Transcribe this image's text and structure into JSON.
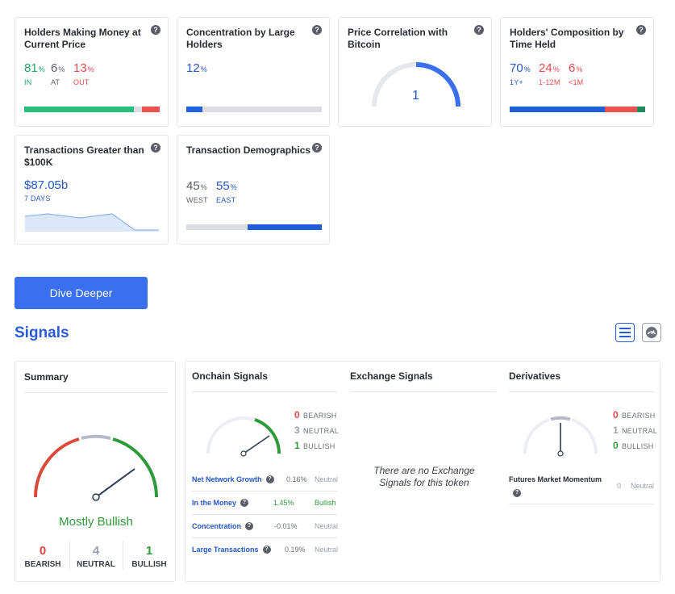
{
  "cards": {
    "holders_money": {
      "title": "Holders Making Money at Current Price",
      "in_value": "81",
      "in_label": "IN",
      "at_value": "6",
      "at_label": "AT",
      "out_value": "13",
      "out_label": "OUT",
      "pct": "%",
      "bar": {
        "in": 81,
        "at": 6,
        "out": 13
      },
      "colors": {
        "in": "#22c07a",
        "at": "#dcdde1",
        "out": "#ec5250"
      }
    },
    "concentration": {
      "title": "Concentration by Large Holders",
      "value": "12",
      "pct": "%",
      "bar": {
        "filled": 12
      },
      "colors": {
        "filled": "#2160e0",
        "rest": "#dcdde1"
      }
    },
    "correlation": {
      "title": "Price Correlation with Bitcoin",
      "value": "1"
    },
    "composition": {
      "title": "Holders' Composition by Time Held",
      "a_value": "70",
      "a_label": "1Y+",
      "b_value": "24",
      "b_label": "1-12M",
      "c_value": "6",
      "c_label": "<1M",
      "pct": "%",
      "bar": {
        "a": 70,
        "b": 24,
        "c": 6
      },
      "colors": {
        "a": "#1f5ed8",
        "b": "#ec5250",
        "c": "#1f8a5a"
      }
    },
    "transactions": {
      "title": "Transactions Greater than $100K",
      "value": "$87.05b",
      "period": "7 DAYS"
    },
    "demographics": {
      "title": "Transaction Demographics",
      "west_value": "45",
      "west_label": "WEST",
      "east_value": "55",
      "east_label": "EAST",
      "pct": "%",
      "bar": {
        "west": 45,
        "east": 55
      },
      "colors": {
        "west": "#dcdde1",
        "east": "#1f5ed8"
      }
    }
  },
  "help_icon": "?",
  "dive_button": "Dive Deeper",
  "signals": {
    "title": "Signals",
    "summary": {
      "title": "Summary",
      "verdict": "Mostly Bullish",
      "bearish_count": "0",
      "bearish_label": "BEARISH",
      "neutral_count": "4",
      "neutral_label": "NEUTRAL",
      "bullish_count": "1",
      "bullish_label": "BULLISH"
    },
    "onchain": {
      "title": "Onchain Signals",
      "bearish_count": "0",
      "bearish_label": "BEARISH",
      "neutral_count": "3",
      "neutral_label": "NEUTRAL",
      "bullish_count": "1",
      "bullish_label": "BULLISH",
      "rows": [
        {
          "name": "Net Network Growth",
          "value": "0.16%",
          "status": "Neutral"
        },
        {
          "name": "In the Money",
          "value": "1.45%",
          "status": "Bullish"
        },
        {
          "name": "Concentration",
          "value": "-0.01%",
          "status": "Neutral"
        },
        {
          "name": "Large Transactions",
          "value": "0.19%",
          "status": "Neutral"
        }
      ]
    },
    "exchange": {
      "title": "Exchange Signals",
      "empty_text": "There are no Exchange Signals for this token"
    },
    "derivatives": {
      "title": "Derivatives",
      "bearish_count": "0",
      "bearish_label": "BEARISH",
      "neutral_count": "1",
      "neutral_label": "NEUTRAL",
      "bullish_count": "0",
      "bullish_label": "BULLISH",
      "row": {
        "name": "Futures Market Momentum",
        "value": "0",
        "status": "Neutral"
      }
    }
  }
}
